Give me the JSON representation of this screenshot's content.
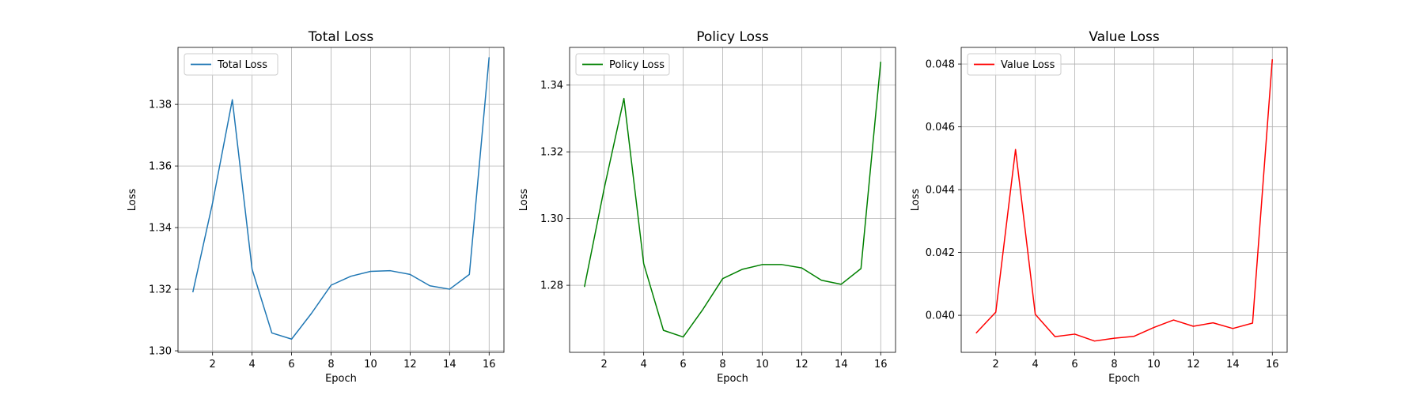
{
  "chart_data": [
    {
      "type": "line",
      "title": "Total Loss",
      "xlabel": "Epoch",
      "ylabel": "Loss",
      "grid": true,
      "legend": "upper-left",
      "xlim": [
        0.25,
        16.75
      ],
      "ylim": [
        1.2995,
        1.3985
      ],
      "xticks": [
        2,
        4,
        6,
        8,
        10,
        12,
        14,
        16
      ],
      "yticks": [
        1.3,
        1.32,
        1.34,
        1.36,
        1.38
      ],
      "tick_decimals": 2,
      "x": [
        1,
        2,
        3,
        4,
        5,
        6,
        7,
        8,
        9,
        10,
        11,
        12,
        13,
        14,
        15,
        16
      ],
      "series": [
        {
          "name": "Total Loss",
          "color": "#1f77b4",
          "values": [
            1.319,
            1.348,
            1.3815,
            1.3265,
            1.3058,
            1.3038,
            1.3121,
            1.3213,
            1.3242,
            1.3258,
            1.326,
            1.3248,
            1.3211,
            1.32,
            1.3248,
            1.3953
          ]
        }
      ]
    },
    {
      "type": "line",
      "title": "Policy Loss",
      "xlabel": "Epoch",
      "ylabel": "Loss",
      "grid": true,
      "legend": "upper-left",
      "xlim": [
        0.25,
        16.75
      ],
      "ylim": [
        1.2599,
        1.3513
      ],
      "xticks": [
        2,
        4,
        6,
        8,
        10,
        12,
        14,
        16
      ],
      "yticks": [
        1.28,
        1.3,
        1.32,
        1.34
      ],
      "tick_decimals": 2,
      "x": [
        1,
        2,
        3,
        4,
        5,
        6,
        7,
        8,
        9,
        10,
        11,
        12,
        13,
        14,
        15,
        16
      ],
      "series": [
        {
          "name": "Policy Loss",
          "color": "#008000",
          "values": [
            1.2795,
            1.309,
            1.336,
            1.2865,
            1.2665,
            1.2645,
            1.2728,
            1.282,
            1.2848,
            1.2862,
            1.2862,
            1.2852,
            1.2815,
            1.2803,
            1.285,
            1.347
          ]
        }
      ]
    },
    {
      "type": "line",
      "title": "Value Loss",
      "xlabel": "Epoch",
      "ylabel": "Loss",
      "grid": true,
      "legend": "upper-left",
      "xlim": [
        0.25,
        16.75
      ],
      "ylim": [
        0.03882,
        0.04853
      ],
      "xticks": [
        2,
        4,
        6,
        8,
        10,
        12,
        14,
        16
      ],
      "yticks": [
        0.04,
        0.042,
        0.044,
        0.046,
        0.048
      ],
      "tick_decimals": 3,
      "x": [
        1,
        2,
        3,
        4,
        5,
        6,
        7,
        8,
        9,
        10,
        11,
        12,
        13,
        14,
        15,
        16
      ],
      "series": [
        {
          "name": "Value Loss",
          "color": "#ff0000",
          "values": [
            0.03943,
            0.0401,
            0.04528,
            0.04003,
            0.03932,
            0.0394,
            0.03918,
            0.03927,
            0.03933,
            0.03961,
            0.03985,
            0.03965,
            0.03976,
            0.03958,
            0.03975,
            0.04815
          ]
        }
      ]
    }
  ]
}
